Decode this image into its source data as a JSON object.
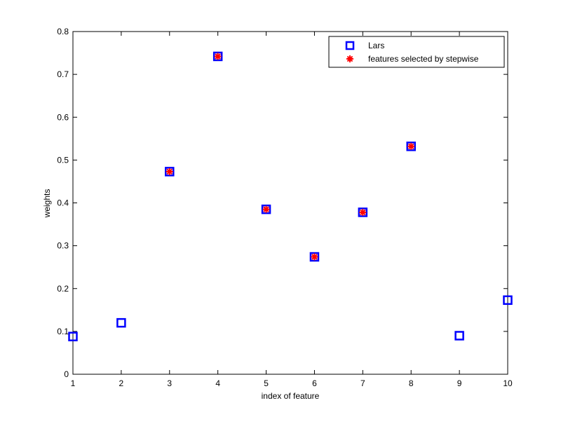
{
  "chart_data": {
    "type": "scatter",
    "title": "",
    "xlabel": "index of feature",
    "ylabel": "weights",
    "xlim": [
      1,
      10
    ],
    "ylim": [
      0,
      0.8
    ],
    "xticks": [
      "1",
      "2",
      "3",
      "4",
      "5",
      "6",
      "7",
      "8",
      "9",
      "10"
    ],
    "yticks": [
      "0",
      "0.1",
      "0.2",
      "0.3",
      "0.4",
      "0.5",
      "0.6",
      "0.7",
      "0.8"
    ],
    "grid": false,
    "legend_position": "top-right",
    "series": [
      {
        "name": "Lars",
        "marker": "square",
        "color": "#0000ff",
        "x": [
          1,
          2,
          3,
          4,
          5,
          6,
          7,
          8,
          9,
          10
        ],
        "y": [
          0.088,
          0.12,
          0.473,
          0.742,
          0.385,
          0.274,
          0.378,
          0.532,
          0.09,
          0.173
        ]
      },
      {
        "name": "features selected by stepwise",
        "marker": "asterisk",
        "color": "#ff0000",
        "x": [
          3,
          4,
          5,
          6,
          7,
          8
        ],
        "y": [
          0.473,
          0.742,
          0.385,
          0.274,
          0.378,
          0.532
        ]
      }
    ]
  }
}
